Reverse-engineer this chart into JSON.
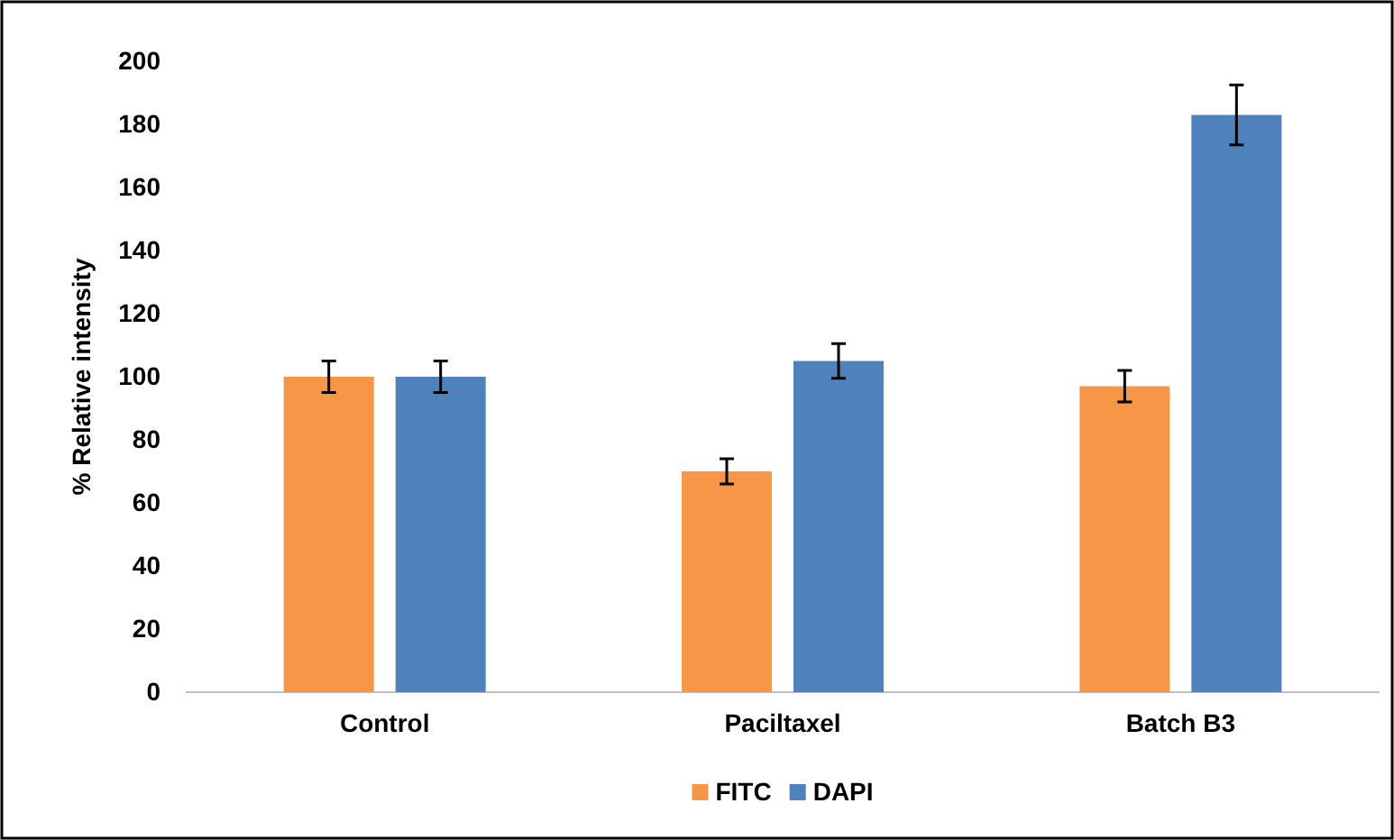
{
  "chart_data": {
    "type": "bar",
    "ylabel": "% Relative intensity",
    "categories": [
      "Control",
      "Paciltaxel",
      "Batch B3"
    ],
    "series": [
      {
        "name": "FITC",
        "color": "#f79646",
        "values": [
          100,
          70,
          97
        ],
        "errors": [
          5,
          4,
          5
        ]
      },
      {
        "name": "DAPI",
        "color": "#4f81bd",
        "values": [
          100,
          105,
          183
        ],
        "errors": [
          5,
          5.5,
          9.5
        ]
      }
    ],
    "ylim": [
      0,
      200
    ],
    "yticks": [
      0,
      20,
      40,
      60,
      80,
      100,
      120,
      140,
      160,
      180,
      200
    ],
    "grid": false,
    "legend": "bottom"
  }
}
